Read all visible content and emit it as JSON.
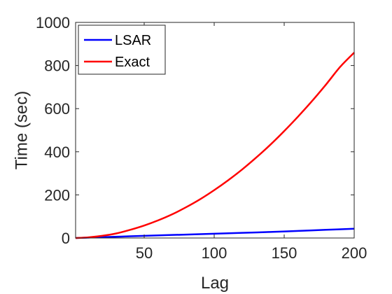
{
  "chart_data": {
    "type": "line",
    "xlabel": "Lag",
    "ylabel": "Time (sec)",
    "xlim": [
      1,
      200
    ],
    "ylim": [
      0,
      1000
    ],
    "xticks": [
      50,
      100,
      150,
      200
    ],
    "yticks": [
      0,
      200,
      400,
      600,
      800,
      1000
    ],
    "grid": false,
    "legend_position": "top-left",
    "series": [
      {
        "name": "LSAR",
        "color": "#0000ff",
        "x": [
          1,
          20,
          40,
          60,
          80,
          100,
          120,
          140,
          160,
          180,
          200
        ],
        "y": [
          0.2,
          4,
          8,
          12,
          16,
          20,
          24,
          28,
          33,
          38,
          43
        ]
      },
      {
        "name": "Exact",
        "color": "#ff0000",
        "x": [
          1,
          10,
          20,
          30,
          40,
          50,
          60,
          70,
          80,
          90,
          100,
          110,
          120,
          130,
          140,
          150,
          160,
          170,
          180,
          190,
          200
        ],
        "y": [
          0,
          3,
          10,
          21,
          38,
          58,
          82,
          110,
          143,
          180,
          222,
          268,
          318,
          373,
          432,
          496,
          564,
          636,
          713,
          794,
          860
        ]
      }
    ]
  }
}
